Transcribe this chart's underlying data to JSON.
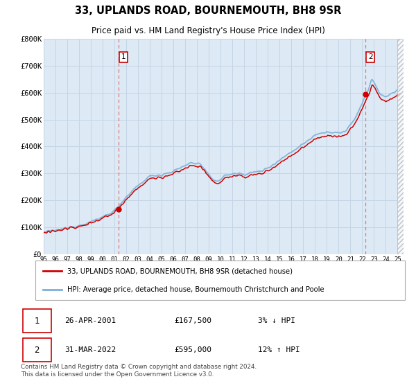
{
  "title": "33, UPLANDS ROAD, BOURNEMOUTH, BH8 9SR",
  "subtitle": "Price paid vs. HM Land Registry's House Price Index (HPI)",
  "title_fontsize": 11,
  "subtitle_fontsize": 9,
  "bg_color": "#ddeaf5",
  "grid_color": "#c8d8e8",
  "sale1_date": 2001.32,
  "sale1_price": 167500,
  "sale2_date": 2022.25,
  "sale2_price": 595000,
  "annotation1": {
    "num": "1",
    "date": "26-APR-2001",
    "price": "£167,500",
    "change": "3% ↓ HPI"
  },
  "annotation2": {
    "num": "2",
    "date": "31-MAR-2022",
    "price": "£595,000",
    "change": "12% ↑ HPI"
  },
  "legend1": "33, UPLANDS ROAD, BOURNEMOUTH, BH8 9SR (detached house)",
  "legend2": "HPI: Average price, detached house, Bournemouth Christchurch and Poole",
  "footer": "Contains HM Land Registry data © Crown copyright and database right 2024.\nThis data is licensed under the Open Government Licence v3.0.",
  "hpi_color": "#7ab0d8",
  "price_color": "#cc0000",
  "dashed_line_color": "#dd6666",
  "ylim": [
    0,
    800000
  ],
  "xlim_start": 1995.0,
  "xlim_end": 2025.5
}
